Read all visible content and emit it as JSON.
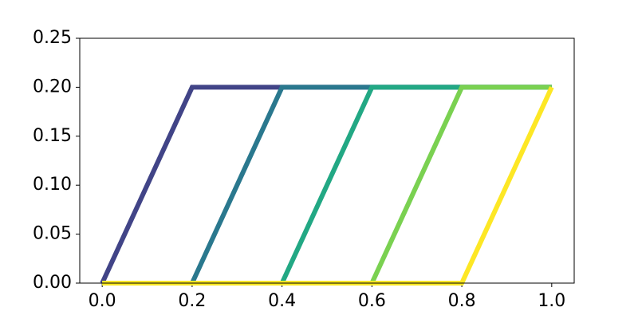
{
  "chart_data": {
    "type": "line",
    "x": [
      0,
      0.2,
      0.4,
      0.6,
      0.8,
      1.0
    ],
    "series": [
      {
        "color": "#414487",
        "values": [
          0,
          0.2,
          0.2,
          0.2,
          0.2,
          0.2
        ]
      },
      {
        "color": "#2a788e",
        "values": [
          0,
          0,
          0.2,
          0.2,
          0.2,
          0.2
        ]
      },
      {
        "color": "#22a884",
        "values": [
          0,
          0,
          0,
          0.2,
          0.2,
          0.2
        ]
      },
      {
        "color": "#7ad151",
        "values": [
          0,
          0,
          0,
          0,
          0.2,
          0.2
        ]
      },
      {
        "color": "#fde725",
        "values": [
          0,
          0,
          0,
          0,
          0,
          0.2
        ]
      }
    ],
    "xlim": [
      -0.05,
      1.05
    ],
    "xticks": [
      {
        "value": 0,
        "label": "0.0"
      },
      {
        "value": 0.2,
        "label": "0.2"
      },
      {
        "value": 0.4,
        "label": "0.4"
      },
      {
        "value": 0.6,
        "label": "0.6"
      },
      {
        "value": 0.8,
        "label": "0.8"
      },
      {
        "value": 1,
        "label": "1.0"
      }
    ],
    "ylim": [
      0,
      0.25
    ],
    "yticks": [
      {
        "value": 0,
        "label": "0.00"
      },
      {
        "value": 0.05,
        "label": "0.05"
      },
      {
        "value": 0.1,
        "label": "0.10"
      },
      {
        "value": 0.15,
        "label": "0.15"
      },
      {
        "value": 0.2,
        "label": "0.20"
      },
      {
        "value": 0.25,
        "label": "0.25"
      }
    ],
    "grid": false
  }
}
